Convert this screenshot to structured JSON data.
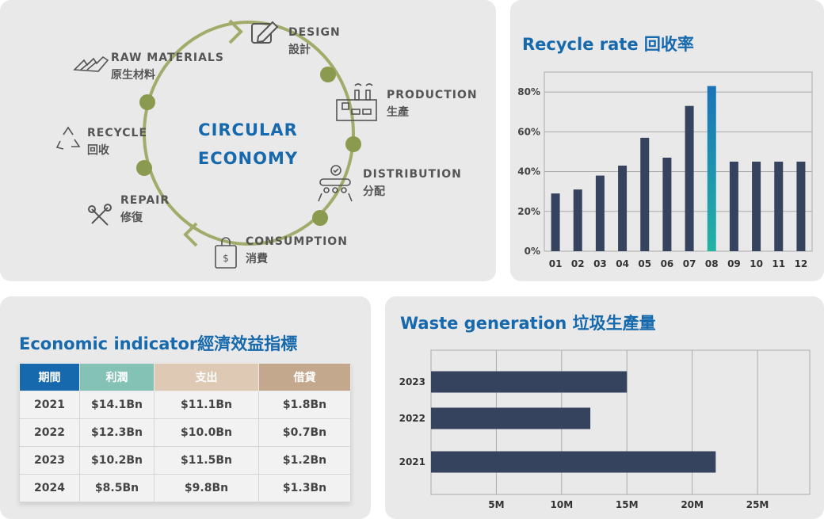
{
  "circular": {
    "center_line1": "CIRCULAR",
    "center_line2": "ECONOMY",
    "stages": [
      {
        "en": "DESIGN",
        "zh": "設計",
        "icon": "pencil-square-icon"
      },
      {
        "en": "PRODUCTION",
        "zh": "生產",
        "icon": "factory-icon"
      },
      {
        "en": "DISTRIBUTION",
        "zh": "分配",
        "icon": "conveyor-belt-icon"
      },
      {
        "en": "CONSUMPTION",
        "zh": "消費",
        "icon": "shopping-bag-icon"
      },
      {
        "en": "REPAIR",
        "zh": "修復",
        "icon": "tools-icon"
      },
      {
        "en": "RECYCLE",
        "zh": "回收",
        "icon": "recycle-icon"
      },
      {
        "en": "RAW MATERIALS",
        "zh": "原生材料",
        "icon": "raw-materials-icon"
      }
    ],
    "colors": {
      "ring": "#a3ab6b",
      "dot": "#8a9a4e"
    }
  },
  "recycle": {
    "title": "Recycle rate 回收率",
    "chart_data": {
      "type": "bar",
      "categories": [
        "01",
        "02",
        "03",
        "04",
        "05",
        "06",
        "07",
        "08",
        "09",
        "10",
        "11",
        "12"
      ],
      "values": [
        29,
        31,
        38,
        43,
        57,
        47,
        73,
        83,
        45,
        45,
        45,
        45
      ],
      "yticks": [
        "0%",
        "20%",
        "40%",
        "60%",
        "80%"
      ],
      "ylim": [
        0,
        90
      ],
      "highlight_index": 7,
      "grid": true,
      "colors": {
        "bar": "#36435f",
        "highlight_top": "#1a72b8",
        "highlight_bottom": "#22b3a4"
      }
    }
  },
  "econ": {
    "title": "Economic indicator經濟效益指標",
    "columns": [
      "期間",
      "利潤",
      "支出",
      "借貸"
    ],
    "rows": [
      [
        "2021",
        "$14.1Bn",
        "$11.1Bn",
        "$1.8Bn"
      ],
      [
        "2022",
        "$12.3Bn",
        "$10.0Bn",
        "$0.7Bn"
      ],
      [
        "2023",
        "$10.2Bn",
        "$11.5Bn",
        "$1.2Bn"
      ],
      [
        "2024",
        "$8.5Bn",
        "$9.8Bn",
        "$1.3Bn"
      ]
    ]
  },
  "waste": {
    "title": "Waste generation 垃圾生產量",
    "chart_data": {
      "type": "bar",
      "orientation": "horizontal",
      "categories": [
        "2023",
        "2022",
        "2021"
      ],
      "values": [
        15,
        12.2,
        21.8
      ],
      "unit": "M",
      "xticks": [
        "5M",
        "10M",
        "15M",
        "20M",
        "25M"
      ],
      "xlim": [
        0,
        29
      ],
      "grid": true,
      "colors": {
        "bar": "#36435f"
      }
    }
  }
}
